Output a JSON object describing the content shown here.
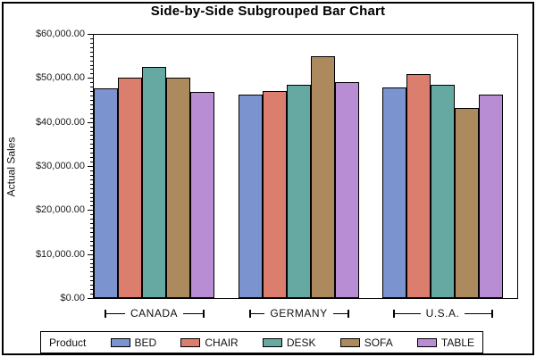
{
  "title": "Side-by-Side Subgrouped Bar Chart",
  "y_axis": {
    "label": "Actual Sales",
    "tick_labels": [
      "$0.00",
      "$10,000.00",
      "$20,000.00",
      "$30,000.00",
      "$40,000.00",
      "$50,000.00",
      "$60,000.00"
    ],
    "major_step": 10000,
    "minor_step": 1000
  },
  "legend": {
    "title": "Product"
  },
  "chart_data": {
    "type": "bar",
    "title": "Side-by-Side Subgrouped Bar Chart",
    "xlabel": "",
    "ylabel": "Actual Sales",
    "categories": [
      "CANADA",
      "GERMANY",
      "U.S.A."
    ],
    "series": [
      {
        "name": "BED",
        "color": "#7B93CE",
        "values": [
          47700,
          46300,
          48100
        ]
      },
      {
        "name": "CHAIR",
        "color": "#DC7E6E",
        "values": [
          50300,
          47100,
          51000
        ]
      },
      {
        "name": "DESK",
        "color": "#66A8A2",
        "values": [
          52600,
          48600,
          48600
        ]
      },
      {
        "name": "SOFA",
        "color": "#AD8A5E",
        "values": [
          50300,
          55100,
          43400
        ]
      },
      {
        "name": "TABLE",
        "color": "#B98DD3",
        "values": [
          46900,
          49200,
          46300
        ]
      }
    ],
    "ylim": [
      0,
      60000
    ],
    "grid": false,
    "legend_position": "bottom"
  }
}
